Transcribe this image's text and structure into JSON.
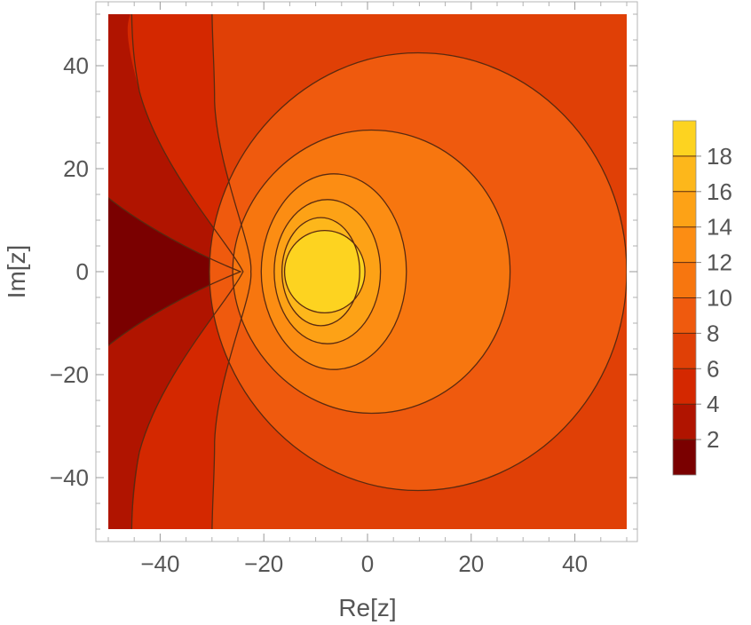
{
  "chart_data": {
    "type": "contour",
    "title": "",
    "xlabel": "Re[z]",
    "ylabel": "Im[z]",
    "xlim": [
      -50,
      50
    ],
    "ylim": [
      -50,
      50
    ],
    "x_ticks": [
      -40,
      -20,
      0,
      20,
      40
    ],
    "y_ticks": [
      -40,
      -20,
      0,
      20,
      40
    ],
    "x_tick_labels": [
      "−40",
      "−20",
      "0",
      "20",
      "40"
    ],
    "y_tick_labels": [
      "−40",
      "−20",
      "0",
      "20",
      "40"
    ],
    "peak": {
      "x": -8.5,
      "y": 0
    },
    "saddle": {
      "x": -24.5,
      "y": 0
    },
    "contour_levels": [
      2,
      4,
      6,
      8,
      10,
      12,
      14,
      16,
      18
    ],
    "legend": {
      "placement": "right",
      "min": 0,
      "max": 20,
      "tick_values": [
        2,
        4,
        6,
        8,
        10,
        12,
        14,
        16,
        18
      ],
      "tick_labels": [
        "2",
        "4",
        "6",
        "8",
        "10",
        "12",
        "14",
        "16",
        "18"
      ]
    },
    "band_colors": [
      "#7a0000",
      "#b01400",
      "#d42800",
      "#e04006",
      "#ef5a0e",
      "#f7760f",
      "#fc8d13",
      "#fda216",
      "#fdb71b",
      "#fdd320"
    ],
    "contour_line_color": "#5a2a10"
  }
}
